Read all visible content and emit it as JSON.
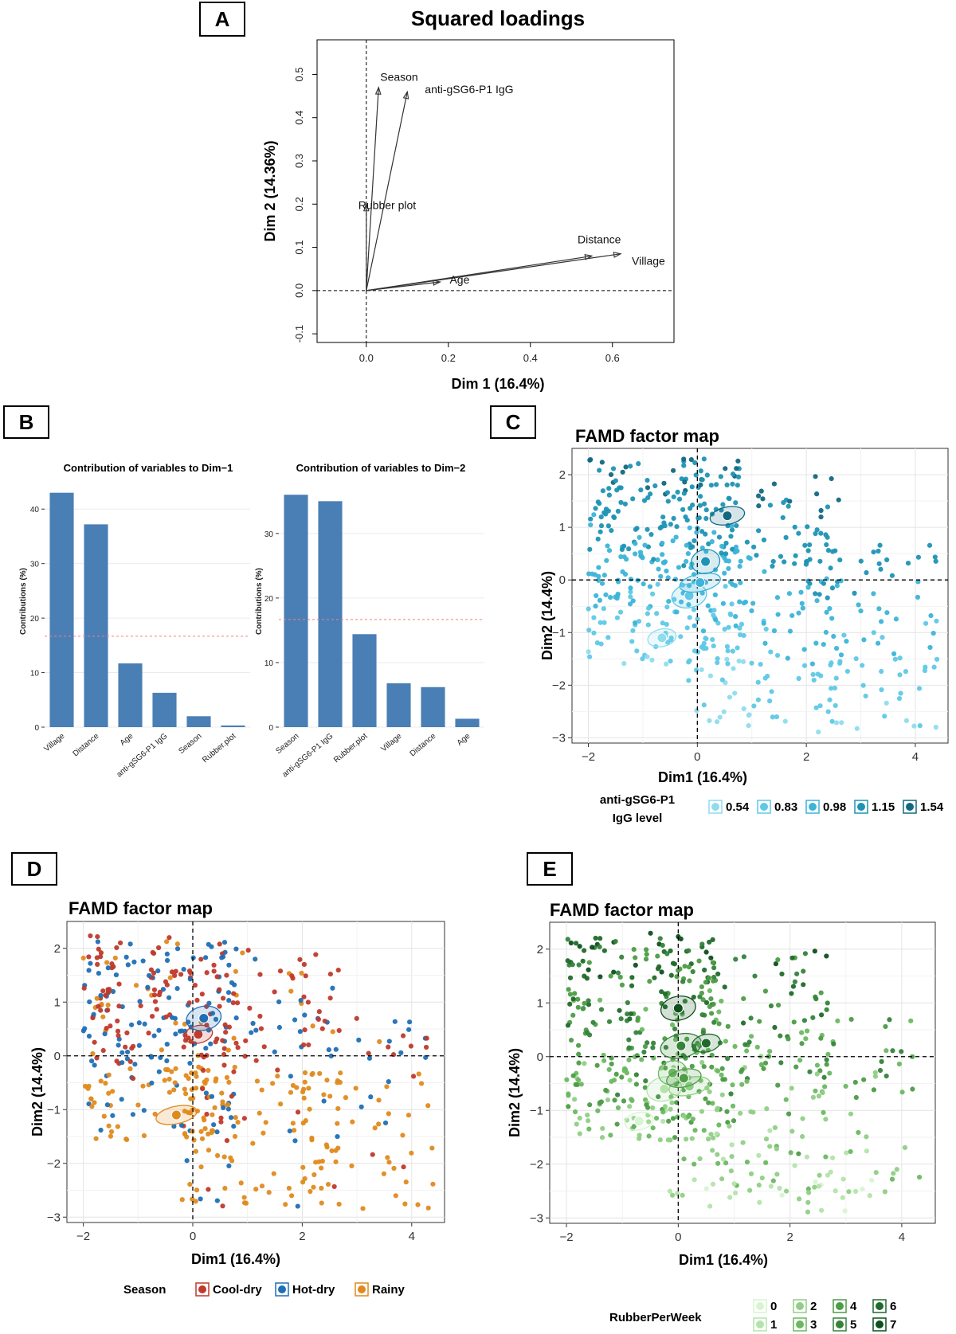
{
  "panels": {
    "A": {
      "label": "A"
    },
    "B": {
      "label": "B"
    },
    "C": {
      "label": "C"
    },
    "D": {
      "label": "D"
    },
    "E": {
      "label": "E"
    }
  },
  "colors": {
    "bar": "#4a7fb5",
    "refline": "#f08080",
    "cool_dry": "#c0392b",
    "hot_dry": "#1f6fb5",
    "rainy": "#e08a1e",
    "igg": [
      "#8fdcef",
      "#60c8e6",
      "#3cb4d8",
      "#1e93b4",
      "#13687f"
    ],
    "rubber": [
      "#d6f5d0",
      "#b4e3aa",
      "#90cf86",
      "#6bb862",
      "#4d9c46",
      "#35833a",
      "#1f6a2a",
      "#0e4f1d"
    ]
  },
  "chart_data": [
    {
      "id": "A",
      "type": "scatter",
      "title": "Squared loadings",
      "xlabel": "Dim 1 (16.4%)",
      "ylabel": "Dim 2 (14.36%)",
      "xlim": [
        -0.12,
        0.75
      ],
      "ylim": [
        -0.12,
        0.58
      ],
      "xticks": [
        "0.0",
        "0.2",
        "0.4",
        "0.6"
      ],
      "yticks": [
        "-0.1",
        "0.0",
        "0.1",
        "0.2",
        "0.3",
        "0.4",
        "0.5"
      ],
      "arrows": [
        {
          "label": "Season",
          "x": 0.03,
          "y": 0.47
        },
        {
          "label": "anti-gSG6-P1 IgG",
          "x": 0.1,
          "y": 0.46
        },
        {
          "label": "Rubber plot",
          "x": 0.0,
          "y": 0.2
        },
        {
          "label": "Distance",
          "x": 0.55,
          "y": 0.08
        },
        {
          "label": "Village",
          "x": 0.62,
          "y": 0.085
        },
        {
          "label": "Age",
          "x": 0.18,
          "y": 0.02
        }
      ]
    },
    {
      "id": "B1",
      "type": "bar",
      "title": "Contribution of variables to Dim−1",
      "ylabel": "Contributions (%)",
      "categories": [
        "Village",
        "Distance",
        "Age",
        "anti-gSG6-P1 IgG",
        "Season",
        "Rubber.plot"
      ],
      "values": [
        43,
        37.2,
        11.7,
        6.3,
        2.0,
        0.3
      ],
      "ylim": [
        0,
        45
      ],
      "yticks": [
        "0",
        "10",
        "20",
        "30",
        "40"
      ],
      "reference": 16.67
    },
    {
      "id": "B2",
      "type": "bar",
      "title": "Contribution of variables to Dim−2",
      "ylabel": "Contributions (%)",
      "categories": [
        "Season",
        "anti-gSG6-P1 IgG",
        "Rubber.plot",
        "Village",
        "Distance",
        "Age"
      ],
      "values": [
        36,
        35,
        14.4,
        6.8,
        6.2,
        1.3
      ],
      "ylim": [
        0,
        38
      ],
      "yticks": [
        "0",
        "10",
        "20",
        "30"
      ],
      "reference": 16.67
    },
    {
      "id": "C",
      "type": "scatter",
      "title": "FAMD factor map",
      "xlabel": "Dim1 (16.4%)",
      "ylabel": "Dim2 (14.4%)",
      "xlim": [
        -2.3,
        4.6
      ],
      "ylim": [
        -3.1,
        2.5
      ],
      "xticks": [
        "−2",
        "0",
        "2",
        "4"
      ],
      "yticks": [
        "−3",
        "−2",
        "−1",
        "0",
        "1",
        "2"
      ],
      "legend_title_1": "anti-gSG6-P1",
      "legend_title_2": "IgG level",
      "legend": [
        "0.54",
        "0.83",
        "0.98",
        "1.15",
        "1.54"
      ],
      "centroids": [
        {
          "group": 0,
          "x": -0.65,
          "y": -1.1
        },
        {
          "group": 1,
          "x": -0.15,
          "y": -0.3
        },
        {
          "group": 2,
          "x": 0.05,
          "y": -0.05
        },
        {
          "group": 3,
          "x": 0.15,
          "y": 0.35
        },
        {
          "group": 4,
          "x": 0.55,
          "y": 1.22
        }
      ]
    },
    {
      "id": "D",
      "type": "scatter",
      "title": "FAMD factor map",
      "xlabel": "Dim1 (16.4%)",
      "ylabel": "Dim2 (14.4%)",
      "xlim": [
        -2.3,
        4.6
      ],
      "ylim": [
        -3.1,
        2.5
      ],
      "xticks": [
        "−2",
        "0",
        "2",
        "4"
      ],
      "yticks": [
        "−3",
        "−2",
        "−1",
        "0",
        "1",
        "2"
      ],
      "legend_title": "Season",
      "legend": [
        "Cool-dry",
        "Hot-dry",
        "Rainy"
      ],
      "centroids": [
        {
          "group": 0,
          "x": 0.1,
          "y": 0.4
        },
        {
          "group": 1,
          "x": 0.2,
          "y": 0.7
        },
        {
          "group": 2,
          "x": -0.3,
          "y": -1.1
        }
      ]
    },
    {
      "id": "E",
      "type": "scatter",
      "title": "FAMD factor map",
      "xlabel": "Dim1 (16.4%)",
      "ylabel": "Dim2 (14.4%)",
      "xlim": [
        -2.3,
        4.6
      ],
      "ylim": [
        -3.1,
        2.5
      ],
      "xticks": [
        "−2",
        "0",
        "2",
        "4"
      ],
      "yticks": [
        "−3",
        "−2",
        "−1",
        "0",
        "1",
        "2"
      ],
      "legend_title": "RubberPerWeek",
      "legend": [
        "0",
        "1",
        "2",
        "3",
        "4",
        "5",
        "6",
        "7"
      ],
      "centroids": [
        {
          "group": 0,
          "x": -0.7,
          "y": -1.2
        },
        {
          "group": 1,
          "x": -0.25,
          "y": -0.6
        },
        {
          "group": 2,
          "x": 0.2,
          "y": -0.55
        },
        {
          "group": 3,
          "x": -0.1,
          "y": -0.3
        },
        {
          "group": 4,
          "x": 0.1,
          "y": -0.4
        },
        {
          "group": 5,
          "x": 0.05,
          "y": 0.2
        },
        {
          "group": 6,
          "x": 0.5,
          "y": 0.25
        },
        {
          "group": 7,
          "x": 0.0,
          "y": 0.9
        }
      ]
    }
  ]
}
